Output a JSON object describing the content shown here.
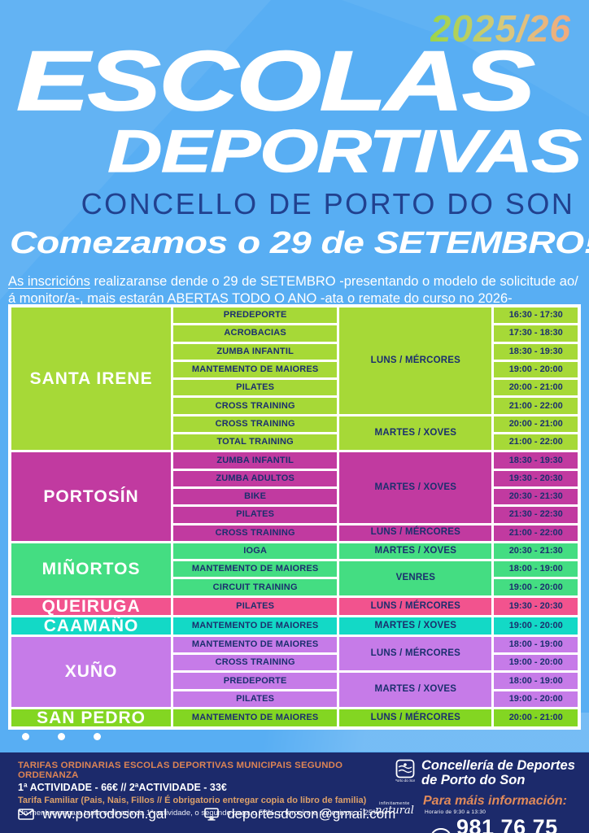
{
  "poster": {
    "year": "2025/26",
    "title_line1": "ESCOLAS",
    "title_line2": "DEPORTIVAS",
    "subtitle": "CONCELLO DE PORTO DO SON",
    "start_heading": "Comezamos o 29 de SETEMBRO!",
    "intro": {
      "underline1": "As inscricións",
      "text1": " realizaranse dende o 29 de SETEMBRO -presentando o modelo de solicitude ao/ á monitor/a-, mais ",
      "underline2": "estarán ABERTAS TODO O ANO",
      "text2": " -ata o remate do curso no 2026-"
    }
  },
  "colors": {
    "background_blue": "#58AEF3",
    "footer_navy": "#1C2A6B",
    "table_text_navy": "#1B2F6E",
    "subtitle_navy": "#21418F",
    "accent_coral": "#DC8455",
    "accent_tan": "#DCA06A",
    "year_gradient_start": "#9CD548",
    "year_gradient_end": "#F2A97E"
  },
  "icons": {
    "envelope": "envelope-icon",
    "monitor": "monitor-icon",
    "phone_bubble": "phone-bubble-icon",
    "crest": "crest-icon",
    "stamp": "natural-stamp"
  },
  "schedule": {
    "sections": [
      {
        "location": "SANTA IRENE",
        "color": "#A6D937",
        "rows": [
          {
            "activity": "PREDEPORTE",
            "time": "16:30 - 17:30"
          },
          {
            "activity": "ACROBACIAS",
            "time": "17:30 - 18:30"
          },
          {
            "activity": "ZUMBA INFANTIL",
            "time": "18:30 - 19:30"
          },
          {
            "activity": "MANTEMENTO DE MAIORES",
            "time": "19:00 - 20:00"
          },
          {
            "activity": "PILATES",
            "time": "20:00 - 21:00"
          },
          {
            "activity": "CROSS TRAINING",
            "time": "21:00 - 22:00"
          },
          {
            "activity": "CROSS TRAINING",
            "time": "20:00 - 21:00"
          },
          {
            "activity": "TOTAL TRAINING",
            "time": "21:00 - 22:00"
          }
        ],
        "day_groups": [
          {
            "label": "LUNS / MÉRCORES",
            "span": 6
          },
          {
            "label": "MARTES / XOVES",
            "span": 2
          }
        ]
      },
      {
        "location": "PORTOSÍN",
        "color": "#C13AA0",
        "rows": [
          {
            "activity": "ZUMBA INFANTIL",
            "time": "18:30 - 19:30"
          },
          {
            "activity": "ZUMBA ADULTOS",
            "time": "19:30 - 20:30"
          },
          {
            "activity": "BIKE",
            "time": "20:30 - 21:30"
          },
          {
            "activity": "PILATES",
            "time": "21:30 - 22:30"
          },
          {
            "activity": "CROSS TRAINING",
            "time": "21:00 - 22:00"
          }
        ],
        "day_groups": [
          {
            "label": "MARTES / XOVES",
            "span": 4
          },
          {
            "label": "LUNS / MÉRCORES",
            "span": 1
          }
        ]
      },
      {
        "location": "MIÑORTOS",
        "color": "#44DD82",
        "rows": [
          {
            "activity": "IOGA",
            "time": "20:30 - 21:30"
          },
          {
            "activity": "MANTEMENTO DE MAIORES",
            "time": "18:00 - 19:00"
          },
          {
            "activity": "CIRCUIT TRAINING",
            "time": "19:00 - 20:00"
          }
        ],
        "day_groups": [
          {
            "label": "MARTES / XOVES",
            "span": 1
          },
          {
            "label": "VENRES",
            "span": 2
          }
        ]
      },
      {
        "location": "QUEIRUGA",
        "color": "#F2538E",
        "rows": [
          {
            "activity": "PILATES",
            "time": "19:30 - 20:30"
          }
        ],
        "day_groups": [
          {
            "label": "LUNS / MÉRCORES",
            "span": 1
          }
        ]
      },
      {
        "location": "CAAMAÑO",
        "color": "#13D9C6",
        "rows": [
          {
            "activity": "MANTEMENTO DE MAIORES",
            "time": "19:00 - 20:00"
          }
        ],
        "day_groups": [
          {
            "label": "MARTES / XOVES",
            "span": 1
          }
        ]
      },
      {
        "location": "XUÑO",
        "color": "#C67BE8",
        "rows": [
          {
            "activity": "MANTEMENTO DE MAIORES",
            "time": "18:00 - 19:00"
          },
          {
            "activity": "CROSS TRAINING",
            "time": "19:00 - 20:00"
          },
          {
            "activity": "PREDEPORTE",
            "time": "18:00 - 19:00"
          },
          {
            "activity": "PILATES",
            "time": "19:00 - 20:00"
          }
        ],
        "day_groups": [
          {
            "label": "LUNS / MÉRCORES",
            "span": 2
          },
          {
            "label": "MARTES / XOVES",
            "span": 2
          }
        ]
      },
      {
        "location": "SAN PEDRO",
        "color": "#83D622",
        "rows": [
          {
            "activity": "MANTEMENTO DE MAIORES",
            "time": "20:00 - 21:00"
          }
        ],
        "day_groups": [
          {
            "label": "LUNS / MÉRCORES",
            "span": 1
          }
        ]
      }
    ]
  },
  "footer": {
    "tarifas_title": "TARIFAS ORDINARIAS ESCOLAS DEPORTIVAS MUNICIPAIS SEGUNDO ORDENANZA",
    "tarifas_prices": "1ª ACTIVIDADE - 66€ // 2ªACTIVIDADE - 33€",
    "tarifa_familiar": "Tarifa Familiar (Pais, Nais, Fillos // É obrigatorio entregar copia do libro de familia)",
    "tarifa_detail": "Un menbro paga a tarifa ordinaria da 1ª actividade, o segundo paga o 50%, o terceiro e sucesivos, o 25%.",
    "website": "www.portodoson.gal",
    "email": "deportesdoson@gmail.com",
    "org_line1": "Concellería de Deportes",
    "org_line2": "de Porto do Son",
    "info_label": "Para máis información:",
    "schedule_note": "Horario de 9:30 a 13:30",
    "phone": "981 76 75 89",
    "stamp_line1": "infinitamente",
    "stamp_line2": "natural"
  }
}
